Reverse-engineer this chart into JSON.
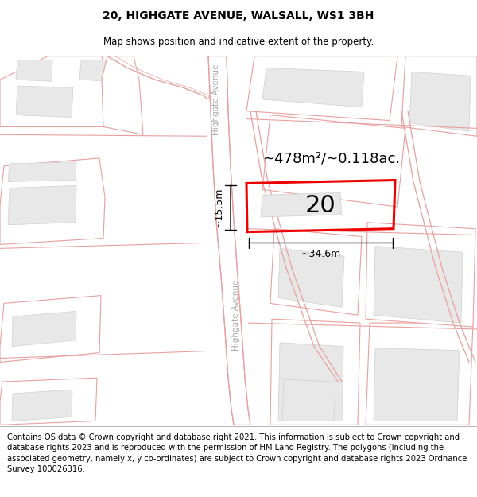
{
  "title_line1": "20, HIGHGATE AVENUE, WALSALL, WS1 3BH",
  "title_line2": "Map shows position and indicative extent of the property.",
  "footer_text": "Contains OS data © Crown copyright and database right 2021. This information is subject to Crown copyright and database rights 2023 and is reproduced with the permission of HM Land Registry. The polygons (including the associated geometry, namely x, y co-ordinates) are subject to Crown copyright and database rights 2023 Ordnance Survey 100026316.",
  "area_label": "~478m²/~0.118ac.",
  "number_label": "20",
  "width_label": "~34.6m",
  "height_label": "~15.5m",
  "title_fontsize": 10,
  "subtitle_fontsize": 8.5,
  "footer_fontsize": 7.2,
  "street_label": "Highgate Avenue"
}
